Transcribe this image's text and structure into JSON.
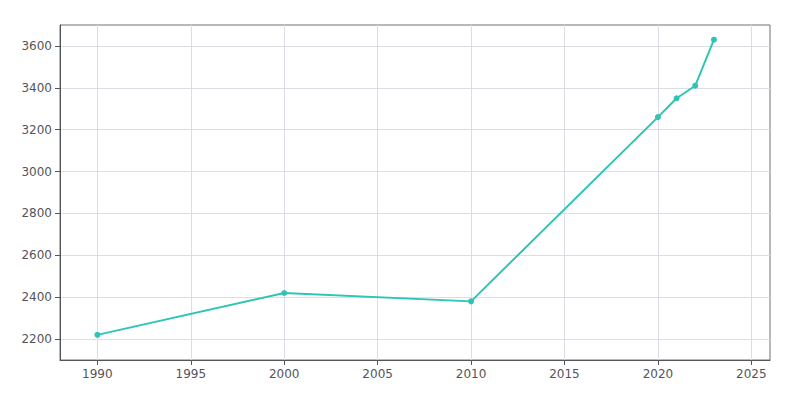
{
  "chart_data": {
    "type": "line",
    "x": [
      1990,
      2000,
      2010,
      2020,
      2021,
      2022,
      2023
    ],
    "values": [
      2220,
      2420,
      2380,
      3260,
      3350,
      3410,
      3630
    ],
    "color": "#2ec4b6",
    "marker": "circle",
    "xlim": [
      1988,
      2026
    ],
    "xticks": [
      1990,
      1995,
      2000,
      2005,
      2010,
      2015,
      2020,
      2025
    ],
    "ylim": [
      2100,
      3700
    ],
    "yticks": [
      2200,
      2400,
      2600,
      2800,
      3000,
      3200,
      3400,
      3600
    ],
    "grid": true
  }
}
